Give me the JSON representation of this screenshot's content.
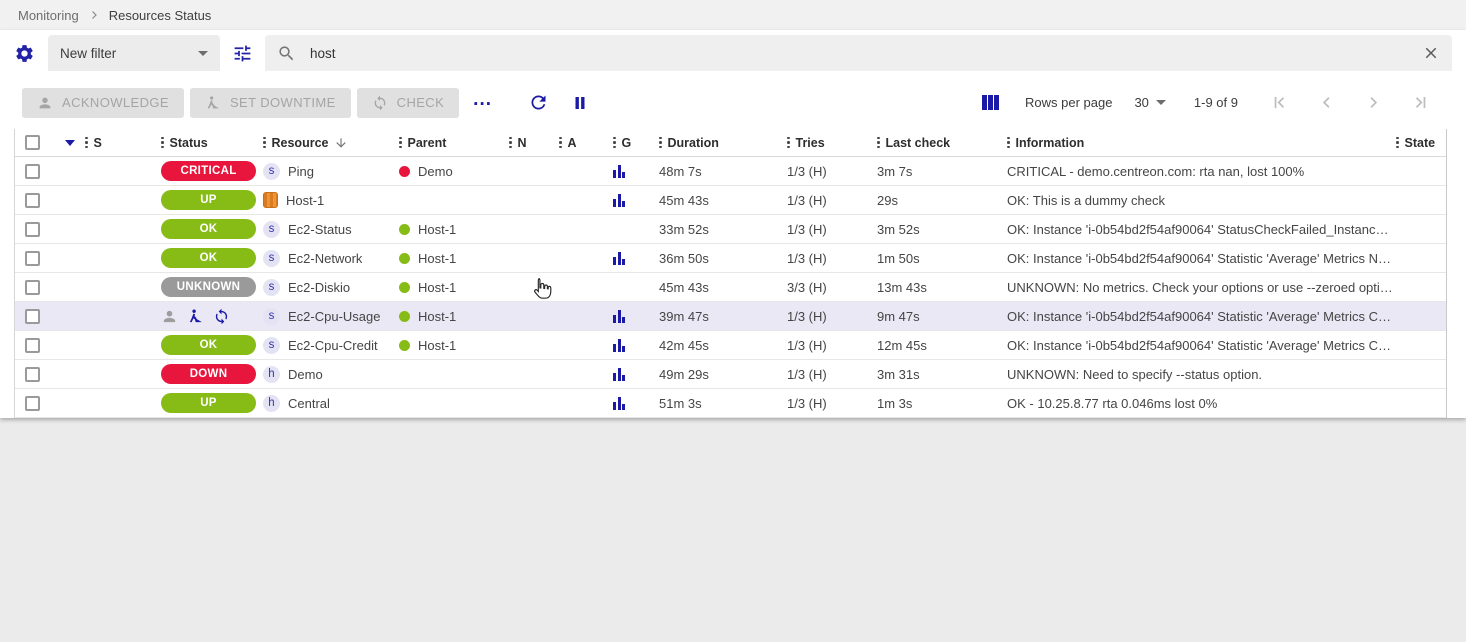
{
  "breadcrumb": {
    "items": [
      "Monitoring",
      "Resources Status"
    ]
  },
  "filter_bar": {
    "filter_select_value": "New filter",
    "search_value": "host"
  },
  "toolbar": {
    "acknowledge_label": "ACKNOWLEDGE",
    "set_downtime_label": "SET DOWNTIME",
    "check_label": "CHECK",
    "more_label": "...",
    "rows_per_page_label": "Rows per page",
    "rows_per_page_value": "30",
    "range_label": "1-9 of 9"
  },
  "icons": {
    "top": [
      "gear-icon",
      "tune-icon",
      "search-icon",
      "close-icon"
    ],
    "toolbar": [
      "person-icon",
      "worker-icon",
      "sync-icon",
      "refresh-icon",
      "pause-icon",
      "columns-icon",
      "first-page-icon",
      "prev-page-icon",
      "next-page-icon",
      "last-page-icon"
    ],
    "table": [
      "drag-dots-icon",
      "sort-down-icon",
      "graph-icon",
      "checkbox"
    ]
  },
  "colors": {
    "accent_navy": "#1a1aa6",
    "status": {
      "CRITICAL": "#e8153d",
      "DOWN": "#e8153d",
      "UP": "#87bb16",
      "OK": "#87bb16",
      "UNKNOWN": "#9a9a9a"
    },
    "parent_dot": {
      "red": "#e8153d",
      "green": "#87bb16"
    },
    "row_highlight": "#eae8f5"
  },
  "table": {
    "headers": [
      "S",
      "Status",
      "Resource",
      "Parent",
      "N",
      "A",
      "G",
      "Duration",
      "Tries",
      "Last check",
      "Information",
      "State"
    ],
    "sorted_column": "Resource",
    "rows": [
      {
        "status": "CRITICAL",
        "resource_icon": "s",
        "resource": "Ping",
        "parent_dot": "red",
        "parent": "Demo",
        "graph": true,
        "duration": "48m 7s",
        "tries": "1/3 (H)",
        "last_check": "3m 7s",
        "information": "CRITICAL - demo.centreon.com: rta nan, lost 100%",
        "state": ""
      },
      {
        "status": "UP",
        "resource_icon": "aws",
        "resource": "Host-1",
        "parent_dot": null,
        "parent": "",
        "graph": true,
        "duration": "45m 43s",
        "tries": "1/3 (H)",
        "last_check": "29s",
        "information": "OK: This is a dummy check",
        "state": ""
      },
      {
        "status": "OK",
        "resource_icon": "s",
        "resource": "Ec2-Status",
        "parent_dot": "green",
        "parent": "Host-1",
        "graph": false,
        "duration": "33m 52s",
        "tries": "1/3 (H)",
        "last_check": "3m 52s",
        "information": "OK: Instance 'i-0b54bd2f54af90064' StatusCheckFailed_Instanc…",
        "state": ""
      },
      {
        "status": "OK",
        "resource_icon": "s",
        "resource": "Ec2-Network",
        "parent_dot": "green",
        "parent": "Host-1",
        "graph": true,
        "duration": "36m 50s",
        "tries": "1/3 (H)",
        "last_check": "1m 50s",
        "information": "OK: Instance 'i-0b54bd2f54af90064' Statistic 'Average' Metrics N…",
        "state": ""
      },
      {
        "status": "UNKNOWN",
        "resource_icon": "s",
        "resource": "Ec2-Diskio",
        "parent_dot": "green",
        "parent": "Host-1",
        "graph": false,
        "duration": "45m 43s",
        "tries": "3/3 (H)",
        "last_check": "13m 43s",
        "information": "UNKNOWN: No metrics. Check your options or use --zeroed opti…",
        "state": ""
      },
      {
        "status": "",
        "actions": true,
        "highlighted": true,
        "resource_icon": "s",
        "resource": "Ec2-Cpu-Usage",
        "parent_dot": "green",
        "parent": "Host-1",
        "graph": true,
        "duration": "39m 47s",
        "tries": "1/3 (H)",
        "last_check": "9m 47s",
        "information": "OK: Instance 'i-0b54bd2f54af90064' Statistic 'Average' Metrics C…",
        "state": ""
      },
      {
        "status": "OK",
        "resource_icon": "s",
        "resource": "Ec2-Cpu-Credit",
        "parent_dot": "green",
        "parent": "Host-1",
        "graph": true,
        "duration": "42m 45s",
        "tries": "1/3 (H)",
        "last_check": "12m 45s",
        "information": "OK: Instance 'i-0b54bd2f54af90064' Statistic 'Average' Metrics C…",
        "state": ""
      },
      {
        "status": "DOWN",
        "resource_icon": "h",
        "resource": "Demo",
        "parent_dot": null,
        "parent": "",
        "graph": true,
        "duration": "49m 29s",
        "tries": "1/3 (H)",
        "last_check": "3m 31s",
        "information": "UNKNOWN: Need to specify --status option.",
        "state": ""
      },
      {
        "status": "UP",
        "resource_icon": "h",
        "resource": "Central",
        "parent_dot": null,
        "parent": "",
        "graph": true,
        "duration": "51m 3s",
        "tries": "1/3 (H)",
        "last_check": "1m 3s",
        "information": "OK - 10.25.8.77 rta 0.046ms lost 0%",
        "state": ""
      }
    ]
  }
}
